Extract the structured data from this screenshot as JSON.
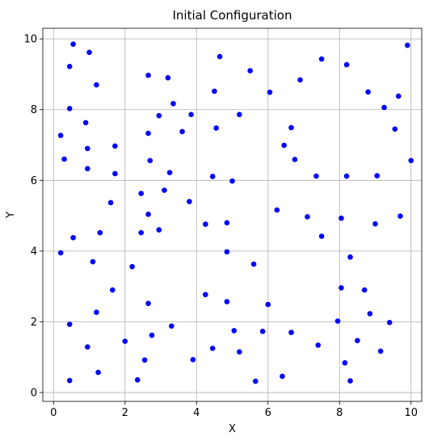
{
  "chart_data": {
    "type": "scatter",
    "title": "Initial Configuration",
    "xlabel": "X",
    "ylabel": "Y",
    "xlim": [
      -0.3,
      10.3
    ],
    "ylim": [
      -0.25,
      10.3
    ],
    "xticks": [
      0,
      2,
      4,
      6,
      8,
      10
    ],
    "yticks": [
      0,
      2,
      4,
      6,
      8,
      10
    ],
    "grid": true,
    "marker_color": "#0000ff",
    "points": [
      [
        0.55,
        9.85
      ],
      [
        1.0,
        9.62
      ],
      [
        0.45,
        9.22
      ],
      [
        1.2,
        8.7
      ],
      [
        0.45,
        8.03
      ],
      [
        0.9,
        7.63
      ],
      [
        0.2,
        7.27
      ],
      [
        0.95,
        6.9
      ],
      [
        0.3,
        6.6
      ],
      [
        0.95,
        6.33
      ],
      [
        1.72,
        6.97
      ],
      [
        1.72,
        6.19
      ],
      [
        1.6,
        5.37
      ],
      [
        0.2,
        3.95
      ],
      [
        0.55,
        4.38
      ],
      [
        1.3,
        4.52
      ],
      [
        1.1,
        3.7
      ],
      [
        2.2,
        3.56
      ],
      [
        1.65,
        2.9
      ],
      [
        1.2,
        2.27
      ],
      [
        0.45,
        1.93
      ],
      [
        0.95,
        1.29
      ],
      [
        2.0,
        1.45
      ],
      [
        0.45,
        0.34
      ],
      [
        1.25,
        0.57
      ],
      [
        2.65,
        8.97
      ],
      [
        3.2,
        8.9
      ],
      [
        3.35,
        8.17
      ],
      [
        2.95,
        7.83
      ],
      [
        3.85,
        7.86
      ],
      [
        2.65,
        7.33
      ],
      [
        3.6,
        7.38
      ],
      [
        2.7,
        6.56
      ],
      [
        3.25,
        6.22
      ],
      [
        3.1,
        5.72
      ],
      [
        2.45,
        5.63
      ],
      [
        2.65,
        5.04
      ],
      [
        2.95,
        4.6
      ],
      [
        2.45,
        4.52
      ],
      [
        3.8,
        5.4
      ],
      [
        2.65,
        2.52
      ],
      [
        2.75,
        1.62
      ],
      [
        3.3,
        1.88
      ],
      [
        2.55,
        0.92
      ],
      [
        2.35,
        0.36
      ],
      [
        3.9,
        0.93
      ],
      [
        4.65,
        9.5
      ],
      [
        4.5,
        8.52
      ],
      [
        5.5,
        9.1
      ],
      [
        6.05,
        8.49
      ],
      [
        4.55,
        7.48
      ],
      [
        5.2,
        7.86
      ],
      [
        4.45,
        6.11
      ],
      [
        5.0,
        5.98
      ],
      [
        4.25,
        4.76
      ],
      [
        4.85,
        4.8
      ],
      [
        4.85,
        3.98
      ],
      [
        4.25,
        2.77
      ],
      [
        4.85,
        2.57
      ],
      [
        5.6,
        3.63
      ],
      [
        6.25,
        5.16
      ],
      [
        6.65,
        7.49
      ],
      [
        6.45,
        6.99
      ],
      [
        6.75,
        6.59
      ],
      [
        6.9,
        8.84
      ],
      [
        6.0,
        2.49
      ],
      [
        5.05,
        1.75
      ],
      [
        5.2,
        1.15
      ],
      [
        4.45,
        1.25
      ],
      [
        5.85,
        1.73
      ],
      [
        5.65,
        0.32
      ],
      [
        6.4,
        0.46
      ],
      [
        6.65,
        1.7
      ],
      [
        7.5,
        9.43
      ],
      [
        8.2,
        9.27
      ],
      [
        8.8,
        8.5
      ],
      [
        9.65,
        8.38
      ],
      [
        9.9,
        9.82
      ],
      [
        9.25,
        8.06
      ],
      [
        9.55,
        7.45
      ],
      [
        7.35,
        6.12
      ],
      [
        8.2,
        6.12
      ],
      [
        9.05,
        6.13
      ],
      [
        10.0,
        6.56
      ],
      [
        7.1,
        4.97
      ],
      [
        8.05,
        4.93
      ],
      [
        7.5,
        4.42
      ],
      [
        8.3,
        3.83
      ],
      [
        9.0,
        4.77
      ],
      [
        9.7,
        4.99
      ],
      [
        8.05,
        2.96
      ],
      [
        8.7,
        2.9
      ],
      [
        8.85,
        2.23
      ],
      [
        7.95,
        2.02
      ],
      [
        9.4,
        1.98
      ],
      [
        7.4,
        1.34
      ],
      [
        8.5,
        1.47
      ],
      [
        8.15,
        0.84
      ],
      [
        9.15,
        1.17
      ],
      [
        8.3,
        0.33
      ]
    ]
  }
}
